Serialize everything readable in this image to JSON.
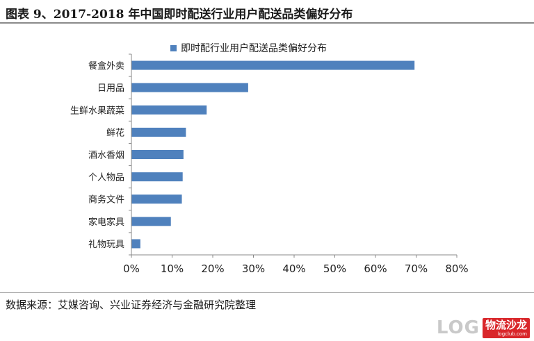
{
  "title": "图表 9、2017-2018 年中国即时配送行业用户配送品类偏好分布",
  "source": "数据来源：艾媒咨询、兴业证券经济与金融研究院整理",
  "logo": {
    "log_text": "LOG",
    "brand": "物流沙龙",
    "url": "logclub.com"
  },
  "colors": {
    "bar": "#4F81BD",
    "axis": "#888888",
    "text": "#222222",
    "brand": "#d9262a"
  },
  "chart_data": {
    "type": "bar",
    "orientation": "horizontal",
    "title": "",
    "xlabel": "",
    "ylabel": "",
    "categories": [
      "餐盒外卖",
      "日用品",
      "生鲜水果蔬菜",
      "鲜花",
      "酒水香烟",
      "个人物品",
      "商务文件",
      "家电家具",
      "礼物玩具"
    ],
    "series": [
      {
        "name": "即时配行业用户配送品类偏好分布",
        "values": [
          0.696,
          0.287,
          0.185,
          0.134,
          0.128,
          0.126,
          0.124,
          0.097,
          0.022
        ]
      }
    ],
    "xlim": [
      0,
      0.8
    ],
    "xticks": [
      "0%",
      "10%",
      "20%",
      "30%",
      "40%",
      "50%",
      "60%",
      "70%",
      "80%"
    ],
    "grid": false,
    "legend": "top-center"
  }
}
